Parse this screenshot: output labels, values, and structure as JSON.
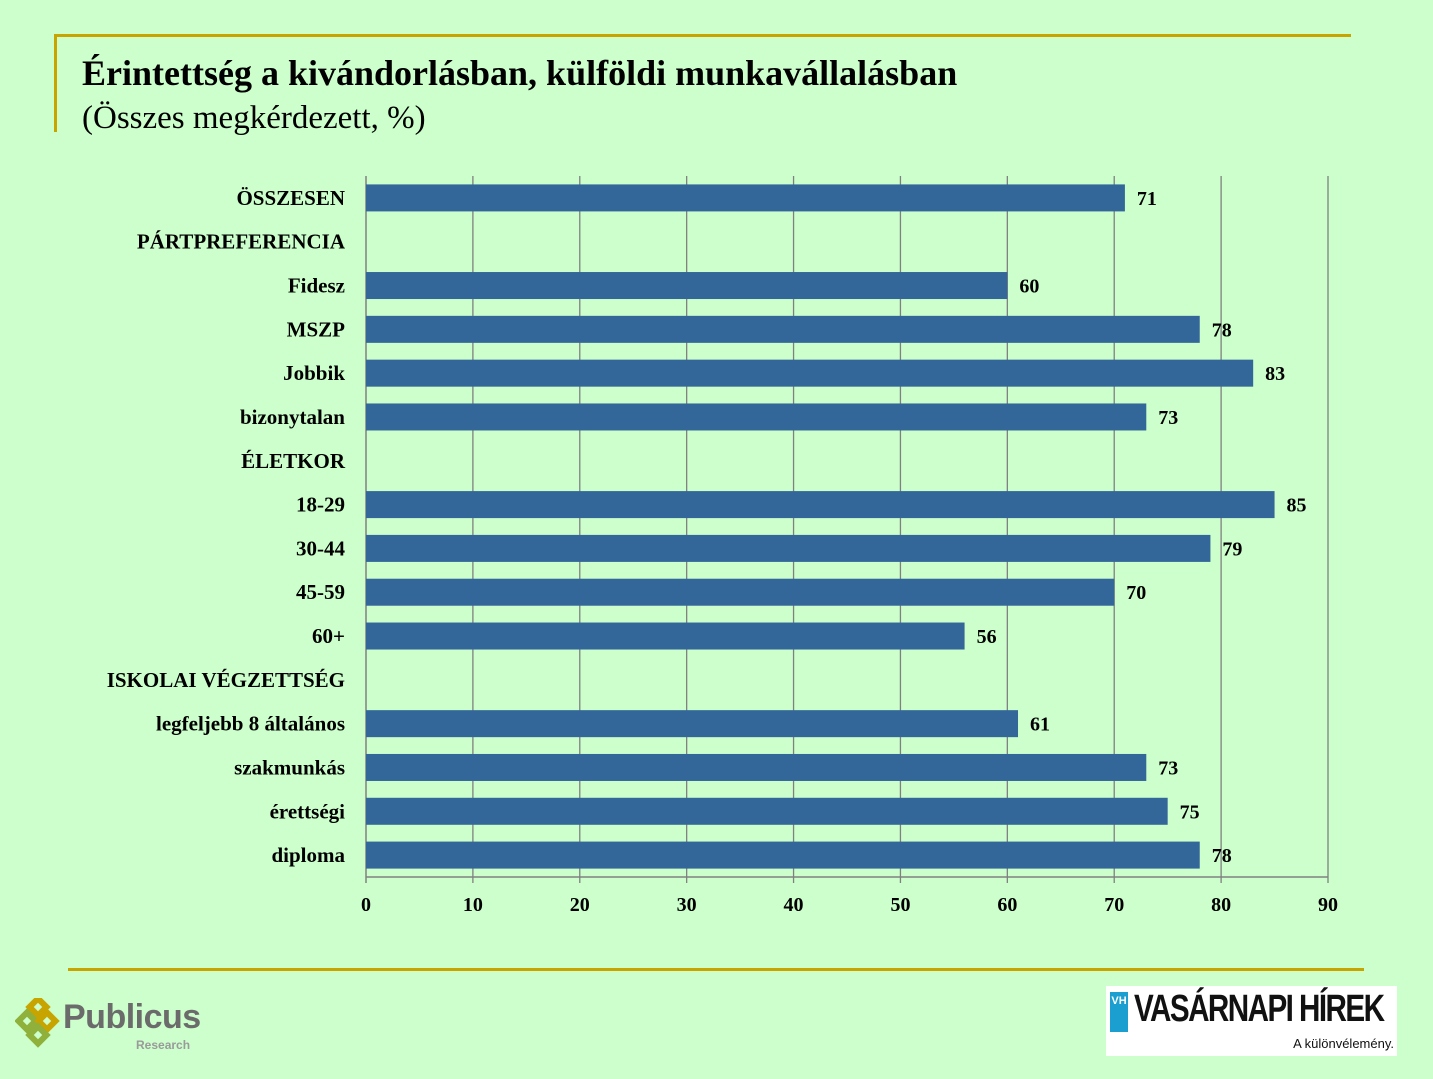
{
  "title": "Érintettség a kivándorlásban, külföldi munkavállalásban",
  "subtitle": "(Összes megkérdezett, %)",
  "colors": {
    "bar": "#336699",
    "grid": "#808080",
    "rule": "#c8a400",
    "background": "#ccffcc"
  },
  "chart_data": {
    "type": "bar",
    "orientation": "horizontal",
    "categories": [
      "ÖSSZESEN",
      "PÁRTPREFERENCIA",
      "Fidesz",
      "MSZP",
      "Jobbik",
      "bizonytalan",
      "ÉLETKOR",
      "18-29",
      "30-44",
      "45-59",
      "60+",
      "ISKOLAI VÉGZETTSÉG",
      "legfeljebb 8 általános",
      "szakmunkás",
      "érettségi",
      "diploma"
    ],
    "values": [
      71,
      null,
      60,
      78,
      83,
      73,
      null,
      85,
      79,
      70,
      56,
      null,
      61,
      73,
      75,
      78
    ],
    "value_labels": [
      "71",
      "",
      "60",
      "78",
      "83",
      "73",
      "",
      "85",
      "79",
      "70",
      "56",
      "",
      "61",
      "73",
      "75",
      "78"
    ],
    "xlim": [
      0,
      90
    ],
    "xticks": [
      "0",
      "10",
      "20",
      "30",
      "40",
      "50",
      "60",
      "70",
      "80",
      "90"
    ],
    "grid": true,
    "legend": "none"
  },
  "logos": {
    "publicus_name": "Publicus",
    "publicus_sub": "Research",
    "vh_badge": "VH",
    "vh_name": "VASÁRNAPI HÍREK",
    "vh_tagline": "A különvélemény."
  }
}
